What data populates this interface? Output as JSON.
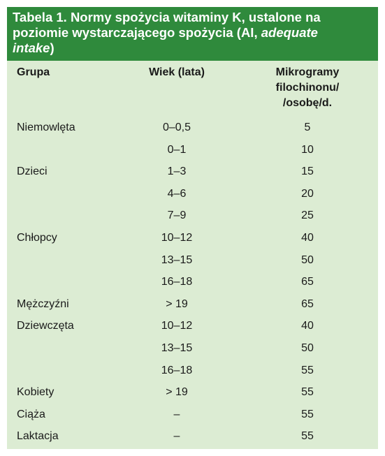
{
  "title": {
    "line1": "Tabela 1. Normy spożycia witaminy K, ustalone na",
    "line2": "poziomie wystarczającego spożycia (AI, ",
    "line2_italic": "adequate",
    "line3_italic": "intake",
    "line3_end": ")"
  },
  "headers": {
    "grupa": "Grupa",
    "wiek": "Wiek (lata)",
    "mikro_line1": "Mikrogramy",
    "mikro_line2": "filochinonu/",
    "mikro_line3": "/osobę/d."
  },
  "rows": [
    {
      "grupa": "Niemowlęta",
      "wiek": "0–0,5",
      "value": "5"
    },
    {
      "grupa": "",
      "wiek": "0–1",
      "value": "10"
    },
    {
      "grupa": "Dzieci",
      "wiek": "1–3",
      "value": "15"
    },
    {
      "grupa": "",
      "wiek": "4–6",
      "value": "20"
    },
    {
      "grupa": "",
      "wiek": "7–9",
      "value": "25"
    },
    {
      "grupa": "Chłopcy",
      "wiek": "10–12",
      "value": "40"
    },
    {
      "grupa": "",
      "wiek": "13–15",
      "value": "50"
    },
    {
      "grupa": "",
      "wiek": "16–18",
      "value": "65"
    },
    {
      "grupa": "Mężczyźni",
      "wiek": "> 19",
      "value": "65"
    },
    {
      "grupa": "Dziewczęta",
      "wiek": "10–12",
      "value": "40"
    },
    {
      "grupa": "",
      "wiek": "13–15",
      "value": "50"
    },
    {
      "grupa": "",
      "wiek": "16–18",
      "value": "55"
    },
    {
      "grupa": "Kobiety",
      "wiek": "> 19",
      "value": "55"
    },
    {
      "grupa": "Ciąża",
      "wiek": "–",
      "value": "55"
    },
    {
      "grupa": "Laktacja",
      "wiek": "–",
      "value": "55"
    }
  ],
  "colors": {
    "title_bg": "#2f8a3c",
    "table_bg": "#dcecd3",
    "text": "#1a1a1a"
  }
}
